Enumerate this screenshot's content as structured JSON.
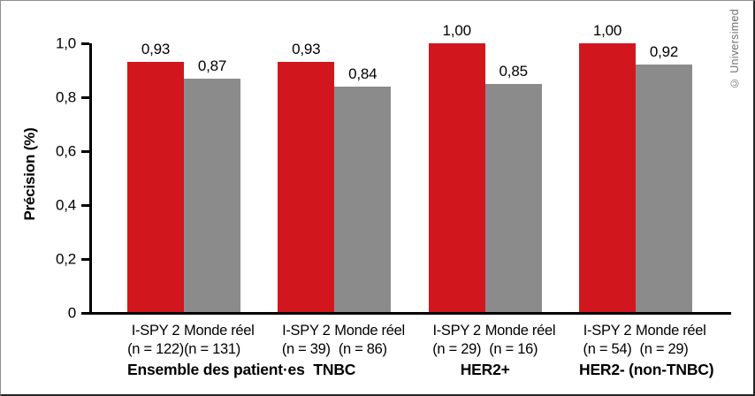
{
  "watermark": "© Universimed",
  "chart_data": {
    "type": "bar",
    "title": "",
    "xlabel": "",
    "ylabel": "Précision (%)",
    "ylim": [
      0,
      1.0
    ],
    "grid": false,
    "legend_position": "none",
    "yticks": [
      {
        "value": 0,
        "label": "0"
      },
      {
        "value": 0.2,
        "label": "0,2"
      },
      {
        "value": 0.4,
        "label": "0,4"
      },
      {
        "value": 0.6,
        "label": "0,6"
      },
      {
        "value": 0.8,
        "label": "0,8"
      },
      {
        "value": 1.0,
        "label": "1,0"
      }
    ],
    "series": [
      {
        "name": "I-SPY 2",
        "color": "#d2161e"
      },
      {
        "name": "Monde réel",
        "color": "#8b8b8b"
      }
    ],
    "groups": [
      {
        "category": "Ensemble des patient·es",
        "bars": [
          {
            "series": "I-SPY 2",
            "n_label": "(n = 122)",
            "value": 0.93,
            "value_label": "0,93"
          },
          {
            "series": "Monde réel",
            "n_label": "(n = 131)",
            "value": 0.87,
            "value_label": "0,87"
          }
        ]
      },
      {
        "category": "TNBC",
        "bars": [
          {
            "series": "I-SPY 2",
            "n_label": "(n = 39)",
            "value": 0.93,
            "value_label": "0,93"
          },
          {
            "series": "Monde réel",
            "n_label": "(n = 86)",
            "value": 0.84,
            "value_label": "0,84"
          }
        ]
      },
      {
        "category": "HER2+",
        "bars": [
          {
            "series": "I-SPY 2",
            "n_label": "(n = 29)",
            "value": 1.0,
            "value_label": "1,00"
          },
          {
            "series": "Monde réel",
            "n_label": "(n = 16)",
            "value": 0.85,
            "value_label": "0,85"
          }
        ]
      },
      {
        "category": "HER2- (non-TNBC)",
        "bars": [
          {
            "series": "I-SPY 2",
            "n_label": "(n = 54)",
            "value": 1.0,
            "value_label": "1,00"
          },
          {
            "series": "Monde réel",
            "n_label": "(n = 29)",
            "value": 0.92,
            "value_label": "0,92"
          }
        ]
      }
    ]
  }
}
